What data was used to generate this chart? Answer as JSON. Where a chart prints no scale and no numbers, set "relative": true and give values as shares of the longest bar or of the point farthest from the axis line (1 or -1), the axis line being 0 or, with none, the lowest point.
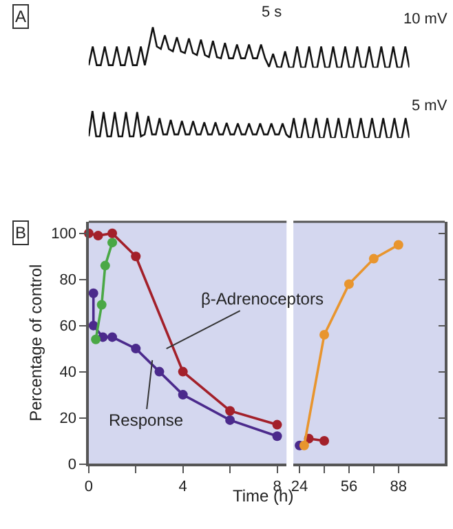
{
  "chart_data": [
    {
      "type": "line",
      "relative": true,
      "tick_labels": false,
      "marker": "none",
      "annotations": [
        "A",
        "5 s",
        "10 mV"
      ],
      "categories": [
        null,
        null,
        null,
        null,
        null,
        null,
        null,
        null,
        null,
        null,
        null,
        null,
        null,
        null,
        null,
        null,
        null,
        null,
        null,
        null,
        null,
        null,
        null,
        null,
        null,
        null,
        null,
        null,
        null,
        null,
        null,
        null,
        null,
        null,
        null,
        null,
        null,
        null,
        null,
        null,
        null,
        null,
        null,
        null,
        null,
        null,
        null,
        null,
        null,
        null,
        null,
        null,
        null,
        null,
        null,
        null,
        null,
        null,
        null,
        null,
        null,
        null,
        null,
        null,
        null,
        null,
        null,
        null,
        null,
        null,
        null,
        null,
        null,
        null,
        null,
        null,
        null,
        null,
        null,
        null,
        null
      ],
      "series": [
        {
          "color": "#111111",
          "values": [
            0.06,
            0.52,
            0.06,
            0.06,
            0.52,
            0.06,
            0.06,
            0.52,
            0.06,
            0.06,
            0.52,
            0.06,
            0.06,
            0.52,
            0.06,
            0.52,
            1.0,
            0.52,
            0.46,
            0.8,
            0.46,
            0.4,
            0.75,
            0.4,
            0.36,
            0.72,
            0.36,
            0.31,
            0.69,
            0.31,
            0.26,
            0.66,
            0.26,
            0.23,
            0.61,
            0.23,
            0.23,
            0.57,
            0.23,
            0.23,
            0.57,
            0.23,
            0.23,
            0.57,
            0.23,
            0.02,
            0.34,
            0.02,
            0.0,
            0.4,
            0.0,
            0.0,
            0.52,
            0.0,
            0.0,
            0.52,
            0.0,
            0.0,
            0.52,
            0.0,
            0.0,
            0.52,
            0.0,
            0.0,
            0.52,
            0.0,
            0.0,
            0.52,
            0.0,
            0.0,
            0.52,
            0.0,
            0.0,
            0.52,
            0.0,
            0.0,
            0.52,
            0.0,
            0.0,
            0.52,
            0.0
          ]
        }
      ]
    },
    {
      "type": "line",
      "relative": true,
      "tick_labels": false,
      "marker": "none",
      "annotations": [
        "5 mV"
      ],
      "categories": [
        null,
        null,
        null,
        null,
        null,
        null,
        null,
        null,
        null,
        null,
        null,
        null,
        null,
        null,
        null,
        null,
        null,
        null,
        null,
        null,
        null,
        null,
        null,
        null,
        null,
        null,
        null,
        null,
        null,
        null,
        null,
        null,
        null,
        null,
        null,
        null,
        null,
        null,
        null,
        null,
        null,
        null,
        null,
        null,
        null,
        null,
        null,
        null,
        null,
        null,
        null,
        null,
        null,
        null,
        null,
        null,
        null,
        null,
        null,
        null,
        null,
        null,
        null,
        null,
        null,
        null,
        null,
        null,
        null,
        null,
        null,
        null,
        null,
        null,
        null,
        null,
        null,
        null,
        null,
        null,
        null,
        null,
        null,
        null,
        null,
        null,
        null
      ],
      "series": [
        {
          "color": "#111111",
          "values": [
            0.06,
            1.0,
            0.06,
            0.06,
            0.96,
            0.06,
            0.06,
            0.96,
            0.06,
            0.06,
            0.96,
            0.06,
            0.06,
            0.96,
            0.06,
            0.13,
            0.81,
            0.13,
            0.13,
            0.73,
            0.13,
            0.13,
            0.67,
            0.13,
            0.13,
            0.63,
            0.13,
            0.13,
            0.62,
            0.13,
            0.13,
            0.58,
            0.13,
            0.13,
            0.58,
            0.13,
            0.13,
            0.56,
            0.13,
            0.13,
            0.54,
            0.13,
            0.13,
            0.54,
            0.13,
            0.13,
            0.54,
            0.13,
            0.13,
            0.54,
            0.13,
            0.13,
            0.54,
            0.13,
            0.0,
            0.73,
            0.0,
            0.0,
            0.73,
            0.0,
            0.0,
            0.73,
            0.0,
            0.0,
            0.73,
            0.0,
            0.0,
            0.73,
            0.0,
            0.0,
            0.73,
            0.0,
            0.0,
            0.73,
            0.0,
            0.0,
            0.73,
            0.0,
            0.0,
            0.73,
            0.0,
            0.0,
            0.73,
            0.0,
            0.0,
            0.73,
            0.0
          ]
        }
      ]
    },
    {
      "type": "line",
      "marker": "circle",
      "grid": false,
      "ylabel": "Percentage of control",
      "xlabel": "Time (h)",
      "annotations": [
        "B",
        {
          "text": "β-Adrenoceptors",
          "x": 3.3,
          "y": 50
        },
        {
          "text": "Response",
          "x": 2.7,
          "y": 45
        }
      ],
      "xlim": [
        0,
        8.4
      ],
      "xticks": [
        0,
        {
          "value": 2,
          "label": null
        },
        4,
        {
          "value": 6,
          "label": null
        },
        8
      ],
      "ylim": [
        0,
        105
      ],
      "yticks": [
        0,
        20,
        40,
        60,
        80,
        100
      ],
      "series": [
        {
          "color": "#4b2a8c",
          "x": [
            0.2,
            0.2,
            0.6,
            1,
            2,
            3,
            4,
            6,
            8
          ],
          "values": [
            74,
            60,
            55,
            55,
            50,
            40,
            30,
            19,
            12
          ]
        },
        {
          "color": "#4aa846",
          "x": [
            0.3,
            0.55,
            0.7,
            1
          ],
          "values": [
            54,
            69,
            86,
            96
          ]
        },
        {
          "color": "#a3202a",
          "x": [
            0,
            0.4,
            1,
            2,
            4,
            6,
            8
          ],
          "values": [
            100,
            99,
            100,
            90,
            40,
            23,
            17
          ]
        }
      ]
    },
    {
      "type": "line",
      "marker": "circle",
      "grid": false,
      "tick_labels": "x",
      "xlim": [
        20,
        118
      ],
      "xticks": [
        24,
        {
          "value": 40,
          "label": null
        },
        56,
        {
          "value": 72,
          "label": null
        },
        88
      ],
      "ylim": [
        0,
        105
      ],
      "yticks": [
        0,
        20,
        40,
        60,
        80,
        100
      ],
      "series": [
        {
          "color": "#4b2a8c",
          "x": [
            24
          ],
          "values": [
            8
          ]
        },
        {
          "color": "#a3202a",
          "x": [
            30,
            40
          ],
          "values": [
            11,
            10
          ]
        },
        {
          "color": "#e8952e",
          "x": [
            27,
            40,
            56,
            72,
            88
          ],
          "values": [
            8,
            56,
            78,
            89,
            95
          ]
        }
      ]
    }
  ]
}
